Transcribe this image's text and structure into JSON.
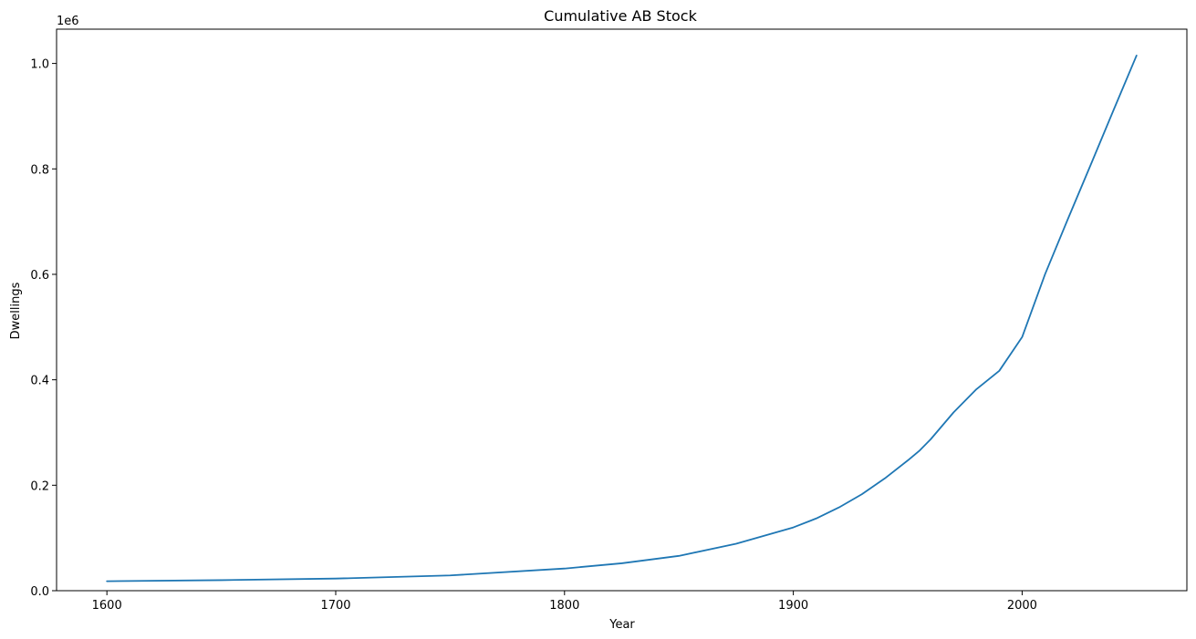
{
  "chart_data": {
    "type": "line",
    "title": "Cumulative AB Stock",
    "xlabel": "Year",
    "ylabel": "Dwellings",
    "y_offset_label": "1e6",
    "xlim": [
      1578,
      2072
    ],
    "ylim": [
      0,
      1.065
    ],
    "x_ticks": [
      1600,
      1700,
      1800,
      1900,
      2000
    ],
    "x_tick_labels": [
      "1600",
      "1700",
      "1800",
      "1900",
      "2000"
    ],
    "y_ticks": [
      0.0,
      0.2,
      0.4,
      0.6,
      0.8,
      1.0
    ],
    "y_tick_labels": [
      "0.0",
      "0.2",
      "0.4",
      "0.6",
      "0.8",
      "1.0"
    ],
    "grid": false,
    "series": [
      {
        "color": "#1f77b4",
        "x": [
          1600,
          1650,
          1700,
          1750,
          1800,
          1825,
          1850,
          1875,
          1900,
          1910,
          1920,
          1930,
          1940,
          1950,
          1955,
          1960,
          1970,
          1980,
          1990,
          2000,
          2010,
          2020,
          2030,
          2040,
          2050
        ],
        "y": [
          0.018,
          0.02,
          0.023,
          0.029,
          0.042,
          0.052,
          0.066,
          0.089,
          0.12,
          0.137,
          0.158,
          0.183,
          0.213,
          0.247,
          0.265,
          0.287,
          0.338,
          0.382,
          0.417,
          0.481,
          0.6,
          0.705,
          0.808,
          0.912,
          1.015
        ]
      }
    ]
  }
}
